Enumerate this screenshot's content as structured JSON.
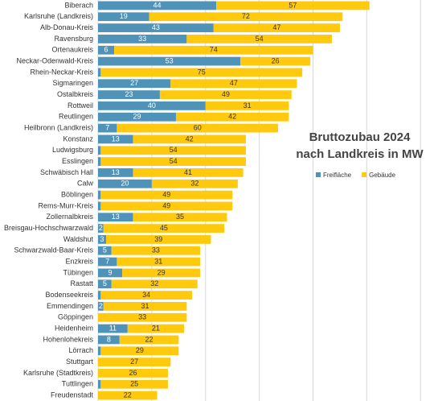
{
  "chart_data": {
    "type": "stacked-barh",
    "title": "Bruttozubau 2024 nach Landkreis in MW",
    "categories": [
      "Biberach",
      "Karlsruhe (Landkreis)",
      "Alb-Donau-Kreis",
      "Ravensburg",
      "Ortenaukreis",
      "Neckar-Odenwald-Kreis",
      "Rhein-Neckar-Kreis",
      "Sigmaringen",
      "Ostalbkreis",
      "Rottweil",
      "Reutlingen",
      "Heilbronn (Landkreis)",
      "Konstanz",
      "Ludwigsburg",
      "Esslingen",
      "Schwäbisch Hall",
      "Calw",
      "Böblingen",
      "Rems-Murr-Kreis",
      "Zollernalbkreis",
      "Breisgau-Hochschwarzwald",
      "Waldshut",
      "Schwarzwald-Baar-Kreis",
      "Enzkreis",
      "Tübingen",
      "Rastatt",
      "Bodenseekreis",
      "Emmendingen",
      "Göppingen",
      "Heidenheim",
      "Hohenlohekreis",
      "Lörrach",
      "Stuttgart",
      "Karlsruhe (Stadtkreis)",
      "Tuttlingen",
      "Freudenstadt"
    ],
    "series": [
      {
        "name": "Freifläche",
        "color": "#4f93b8",
        "values": [
          44,
          19,
          43,
          33,
          6,
          53,
          1,
          27,
          23,
          40,
          29,
          7,
          13,
          1,
          1,
          13,
          20,
          1,
          1,
          13,
          2,
          3,
          5,
          7,
          9,
          5,
          1,
          2,
          0,
          11,
          8,
          1,
          0,
          0,
          1,
          0
        ]
      },
      {
        "name": "Gebäude",
        "color": "#ffc90e",
        "values": [
          57,
          72,
          47,
          54,
          74,
          26,
          75,
          47,
          49,
          31,
          42,
          60,
          42,
          54,
          54,
          41,
          32,
          49,
          49,
          35,
          45,
          39,
          33,
          31,
          29,
          32,
          34,
          31,
          33,
          21,
          22,
          29,
          27,
          26,
          25,
          22
        ]
      }
    ],
    "xlim": [
      0,
      128
    ],
    "xticks": [
      0,
      20,
      40,
      60,
      80,
      100,
      120
    ],
    "grid": true,
    "legend": "right"
  }
}
